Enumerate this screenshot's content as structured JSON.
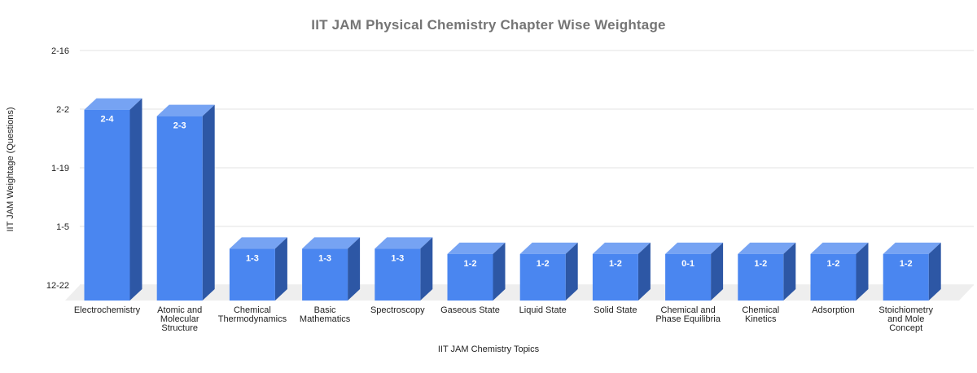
{
  "chart_data": {
    "type": "bar",
    "is_3d": true,
    "title": "IIT JAM Physical Chemistry Chapter Wise Weightage",
    "xlabel": "IIT JAM Chemistry Topics",
    "ylabel": "IIT JAM Weightage (Questions)",
    "legend": "none",
    "grid": true,
    "y_tick_labels": [
      "2-16",
      "2-2",
      "1-19",
      "1-5",
      "12-22"
    ],
    "categories": [
      "Electrochemistry",
      "Atomic and Molecular Structure",
      "Chemical Thermodynamics",
      "Basic Mathematics",
      "Spectroscopy",
      "Gaseous State",
      "Liquid State",
      "Solid State",
      "Chemical and Phase Equilibria",
      "Chemical Kinetics",
      "Adsorption",
      "Stoichiometry and Mole Concept"
    ],
    "categories_wrapped": [
      [
        "Electrochemistry"
      ],
      [
        "Atomic and",
        "Molecular",
        "Structure"
      ],
      [
        "Chemical",
        "Thermodynamics"
      ],
      [
        "Basic",
        "Mathematics"
      ],
      [
        "Spectroscopy"
      ],
      [
        "Gaseous State"
      ],
      [
        "Liquid State"
      ],
      [
        "Solid State"
      ],
      [
        "Chemical and",
        "Phase Equilibria"
      ],
      [
        "Chemical",
        "Kinetics"
      ],
      [
        "Adsorption"
      ],
      [
        "Stoichiometry",
        "and Mole",
        "Concept"
      ]
    ],
    "bar_labels": [
      "2-4",
      "2-3",
      "1-3",
      "1-3",
      "1-3",
      "1-2",
      "1-2",
      "1-2",
      "0-1",
      "1-2",
      "1-2",
      "1-2"
    ],
    "values_grid_units": [
      2.99,
      2.88,
      0.62,
      0.62,
      0.62,
      0.53,
      0.53,
      0.53,
      0.53,
      0.53,
      0.53,
      0.53
    ],
    "colors": {
      "bar_front": "#4a86f0",
      "bar_top": "#76a3f3",
      "bar_side": "#2d57a5",
      "bar_label_text": "#ffffff",
      "gridline": "#e3e3e3",
      "floor": "#eeeeee",
      "title_text": "#757575",
      "axis_text": "#222222",
      "background": "#ffffff"
    }
  }
}
